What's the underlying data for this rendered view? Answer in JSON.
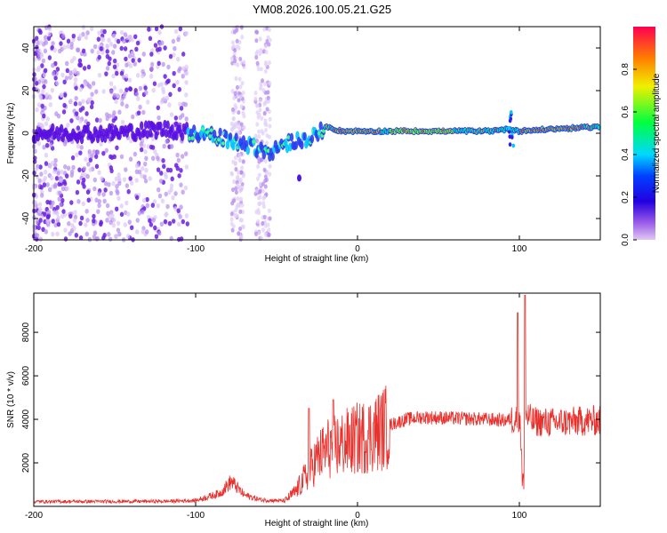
{
  "title": "YM08.2026.100.05.21.G25",
  "chart_data": [
    {
      "type": "heatmap",
      "name": "spectrogram",
      "xlabel": "Height of straight line (km)",
      "ylabel": "Frequency (Hz)",
      "xlim": [
        -200,
        150
      ],
      "ylim": [
        -50,
        50
      ],
      "xticks": [
        -200,
        -100,
        0,
        100
      ],
      "yticks": [
        -40,
        -20,
        0,
        20,
        40
      ],
      "ridge": {
        "description_x": [
          -200,
          -150,
          -120,
          -100,
          -80,
          -65,
          -55,
          -45,
          -35,
          -25,
          -20,
          -10,
          0,
          20,
          50,
          80,
          95,
          100,
          120,
          150
        ],
        "frequency": [
          0,
          0,
          2,
          0,
          -3,
          -6,
          -9,
          -5,
          -3,
          -1,
          3,
          1,
          1,
          1,
          1,
          1,
          2,
          1,
          2,
          3
        ]
      },
      "colorbar": {
        "label": "Normalized spectral amplitude",
        "range": [
          0.0,
          1.0
        ],
        "ticks": [
          0.0,
          0.2,
          0.4,
          0.6,
          0.8
        ]
      }
    },
    {
      "type": "line",
      "name": "snr",
      "xlabel": "Height of straight line (km)",
      "ylabel": "SNR (10 * v/v)",
      "xlim": [
        -200,
        150
      ],
      "ylim": [
        0,
        9800
      ],
      "xticks": [
        -200,
        -100,
        0,
        100
      ],
      "yticks": [
        2000,
        4000,
        6000,
        8000
      ],
      "color": "#e8302c",
      "envelope_x": [
        -200,
        -120,
        -100,
        -85,
        -78,
        -70,
        -60,
        -45,
        -38,
        -30,
        -25,
        -18,
        -10,
        0,
        10,
        20,
        30,
        40,
        60,
        80,
        90,
        96,
        100,
        102,
        104,
        108,
        120,
        135,
        150
      ],
      "envelope_y": [
        220,
        230,
        270,
        600,
        1150,
        520,
        300,
        250,
        700,
        1600,
        2200,
        2700,
        2850,
        3100,
        3350,
        3750,
        4000,
        4100,
        4050,
        4000,
        3950,
        4000,
        4200,
        1800,
        4200,
        3900,
        3850,
        3900,
        3950
      ],
      "spikes": [
        {
          "x": -30,
          "y": 4500
        },
        {
          "x": -15,
          "y": 4900
        },
        {
          "x": 99,
          "y": 8900
        },
        {
          "x": 103.5,
          "y": 9700
        }
      ]
    }
  ]
}
